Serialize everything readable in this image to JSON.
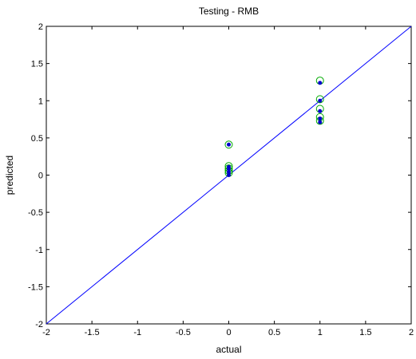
{
  "chart_data": {
    "type": "scatter",
    "title": "Testing - RMB",
    "xlabel": "actual",
    "ylabel": "predicted",
    "xlim": [
      -2,
      2
    ],
    "ylim": [
      -2,
      2
    ],
    "xticks": [
      -2,
      -1.5,
      -1,
      -0.5,
      0,
      0.5,
      1,
      1.5,
      2
    ],
    "yticks": [
      -2,
      -1.5,
      -1,
      -0.5,
      0,
      0.5,
      1,
      1.5,
      2
    ],
    "xtick_labels": [
      "-2",
      "-1.5",
      "-1",
      "-0.5",
      "0",
      "0.5",
      "1",
      "1.5",
      "2"
    ],
    "ytick_labels": [
      "-2",
      "-1.5",
      "-1",
      "-0.5",
      "0",
      "0.5",
      "1",
      "1.5",
      "2"
    ],
    "grid": false,
    "reference_line": {
      "x": [
        -2,
        2
      ],
      "y": [
        -2,
        2
      ],
      "color": "#0000ff"
    },
    "series": [
      {
        "marker": "open-circle",
        "color": "#00aa00",
        "points": [
          {
            "x": 0,
            "y": 0.41
          },
          {
            "x": 0,
            "y": 0.12
          },
          {
            "x": 0,
            "y": 0.09
          },
          {
            "x": 0,
            "y": 0.06
          },
          {
            "x": 0,
            "y": 0.03
          },
          {
            "x": 1,
            "y": 1.27
          },
          {
            "x": 1,
            "y": 1.02
          },
          {
            "x": 1,
            "y": 0.89
          },
          {
            "x": 1,
            "y": 0.78
          },
          {
            "x": 1,
            "y": 0.73
          }
        ]
      },
      {
        "marker": "filled-dot",
        "color": "#0000cc",
        "points": [
          {
            "x": 0,
            "y": 0.41
          },
          {
            "x": 0,
            "y": 0.11
          },
          {
            "x": 0,
            "y": 0.08
          },
          {
            "x": 0,
            "y": 0.04
          },
          {
            "x": 0,
            "y": 0.0
          },
          {
            "x": 1,
            "y": 1.24
          },
          {
            "x": 1,
            "y": 1.0
          },
          {
            "x": 1,
            "y": 0.86
          },
          {
            "x": 1,
            "y": 0.76
          },
          {
            "x": 1,
            "y": 0.71
          }
        ]
      }
    ]
  }
}
